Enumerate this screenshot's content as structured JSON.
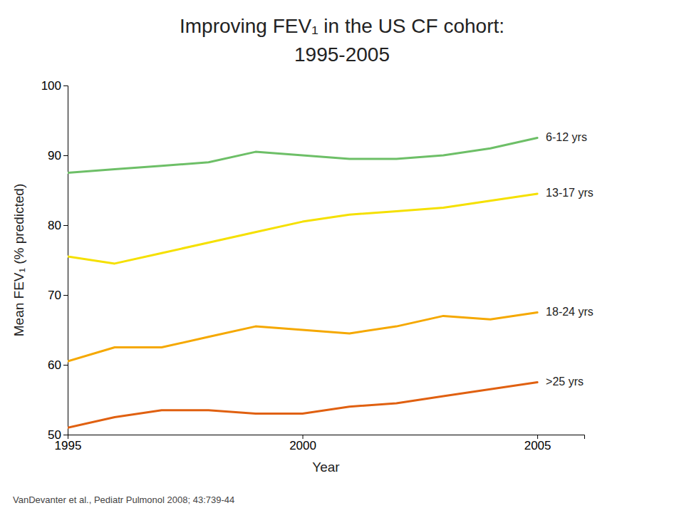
{
  "chart_data": {
    "type": "line",
    "title": "Improving FEV₁ in the US CF cohort:",
    "subtitle": "1995-2005",
    "xlabel": "Year",
    "ylabel": "Mean FEV₁ (% predicted)",
    "annotations": [
      "VanDevanter et al., Pediatr Pulmonol 2008; 43:739-44"
    ],
    "x": [
      1995,
      1996,
      1997,
      1998,
      1999,
      2000,
      2001,
      2002,
      2003,
      2004,
      2005
    ],
    "xlim": [
      1995,
      2006
    ],
    "xticks": [
      1995,
      2000,
      2005
    ],
    "ylim": [
      50,
      100
    ],
    "yticks": [
      50,
      60,
      70,
      80,
      90,
      100
    ],
    "grid": false,
    "series": [
      {
        "name": "6-12 yrs",
        "color": "#6DBF67",
        "values": [
          87.5,
          88.0,
          88.5,
          89.0,
          90.5,
          90.0,
          89.5,
          89.5,
          90.0,
          91.0,
          92.5
        ]
      },
      {
        "name": "13-17 yrs",
        "color": "#F5E000",
        "values": [
          75.5,
          74.5,
          76.0,
          77.5,
          79.0,
          80.5,
          81.5,
          82.0,
          82.5,
          83.5,
          84.5
        ]
      },
      {
        "name": "18-24 yrs",
        "color": "#F5A800",
        "values": [
          60.5,
          62.5,
          62.5,
          64.0,
          65.5,
          65.0,
          64.5,
          65.5,
          67.0,
          66.5,
          67.5
        ]
      },
      {
        "name": ">25 yrs",
        "color": "#E06010",
        "values": [
          51.0,
          52.5,
          53.5,
          53.5,
          53.0,
          53.0,
          54.0,
          54.5,
          55.5,
          56.5,
          57.5
        ]
      }
    ]
  }
}
